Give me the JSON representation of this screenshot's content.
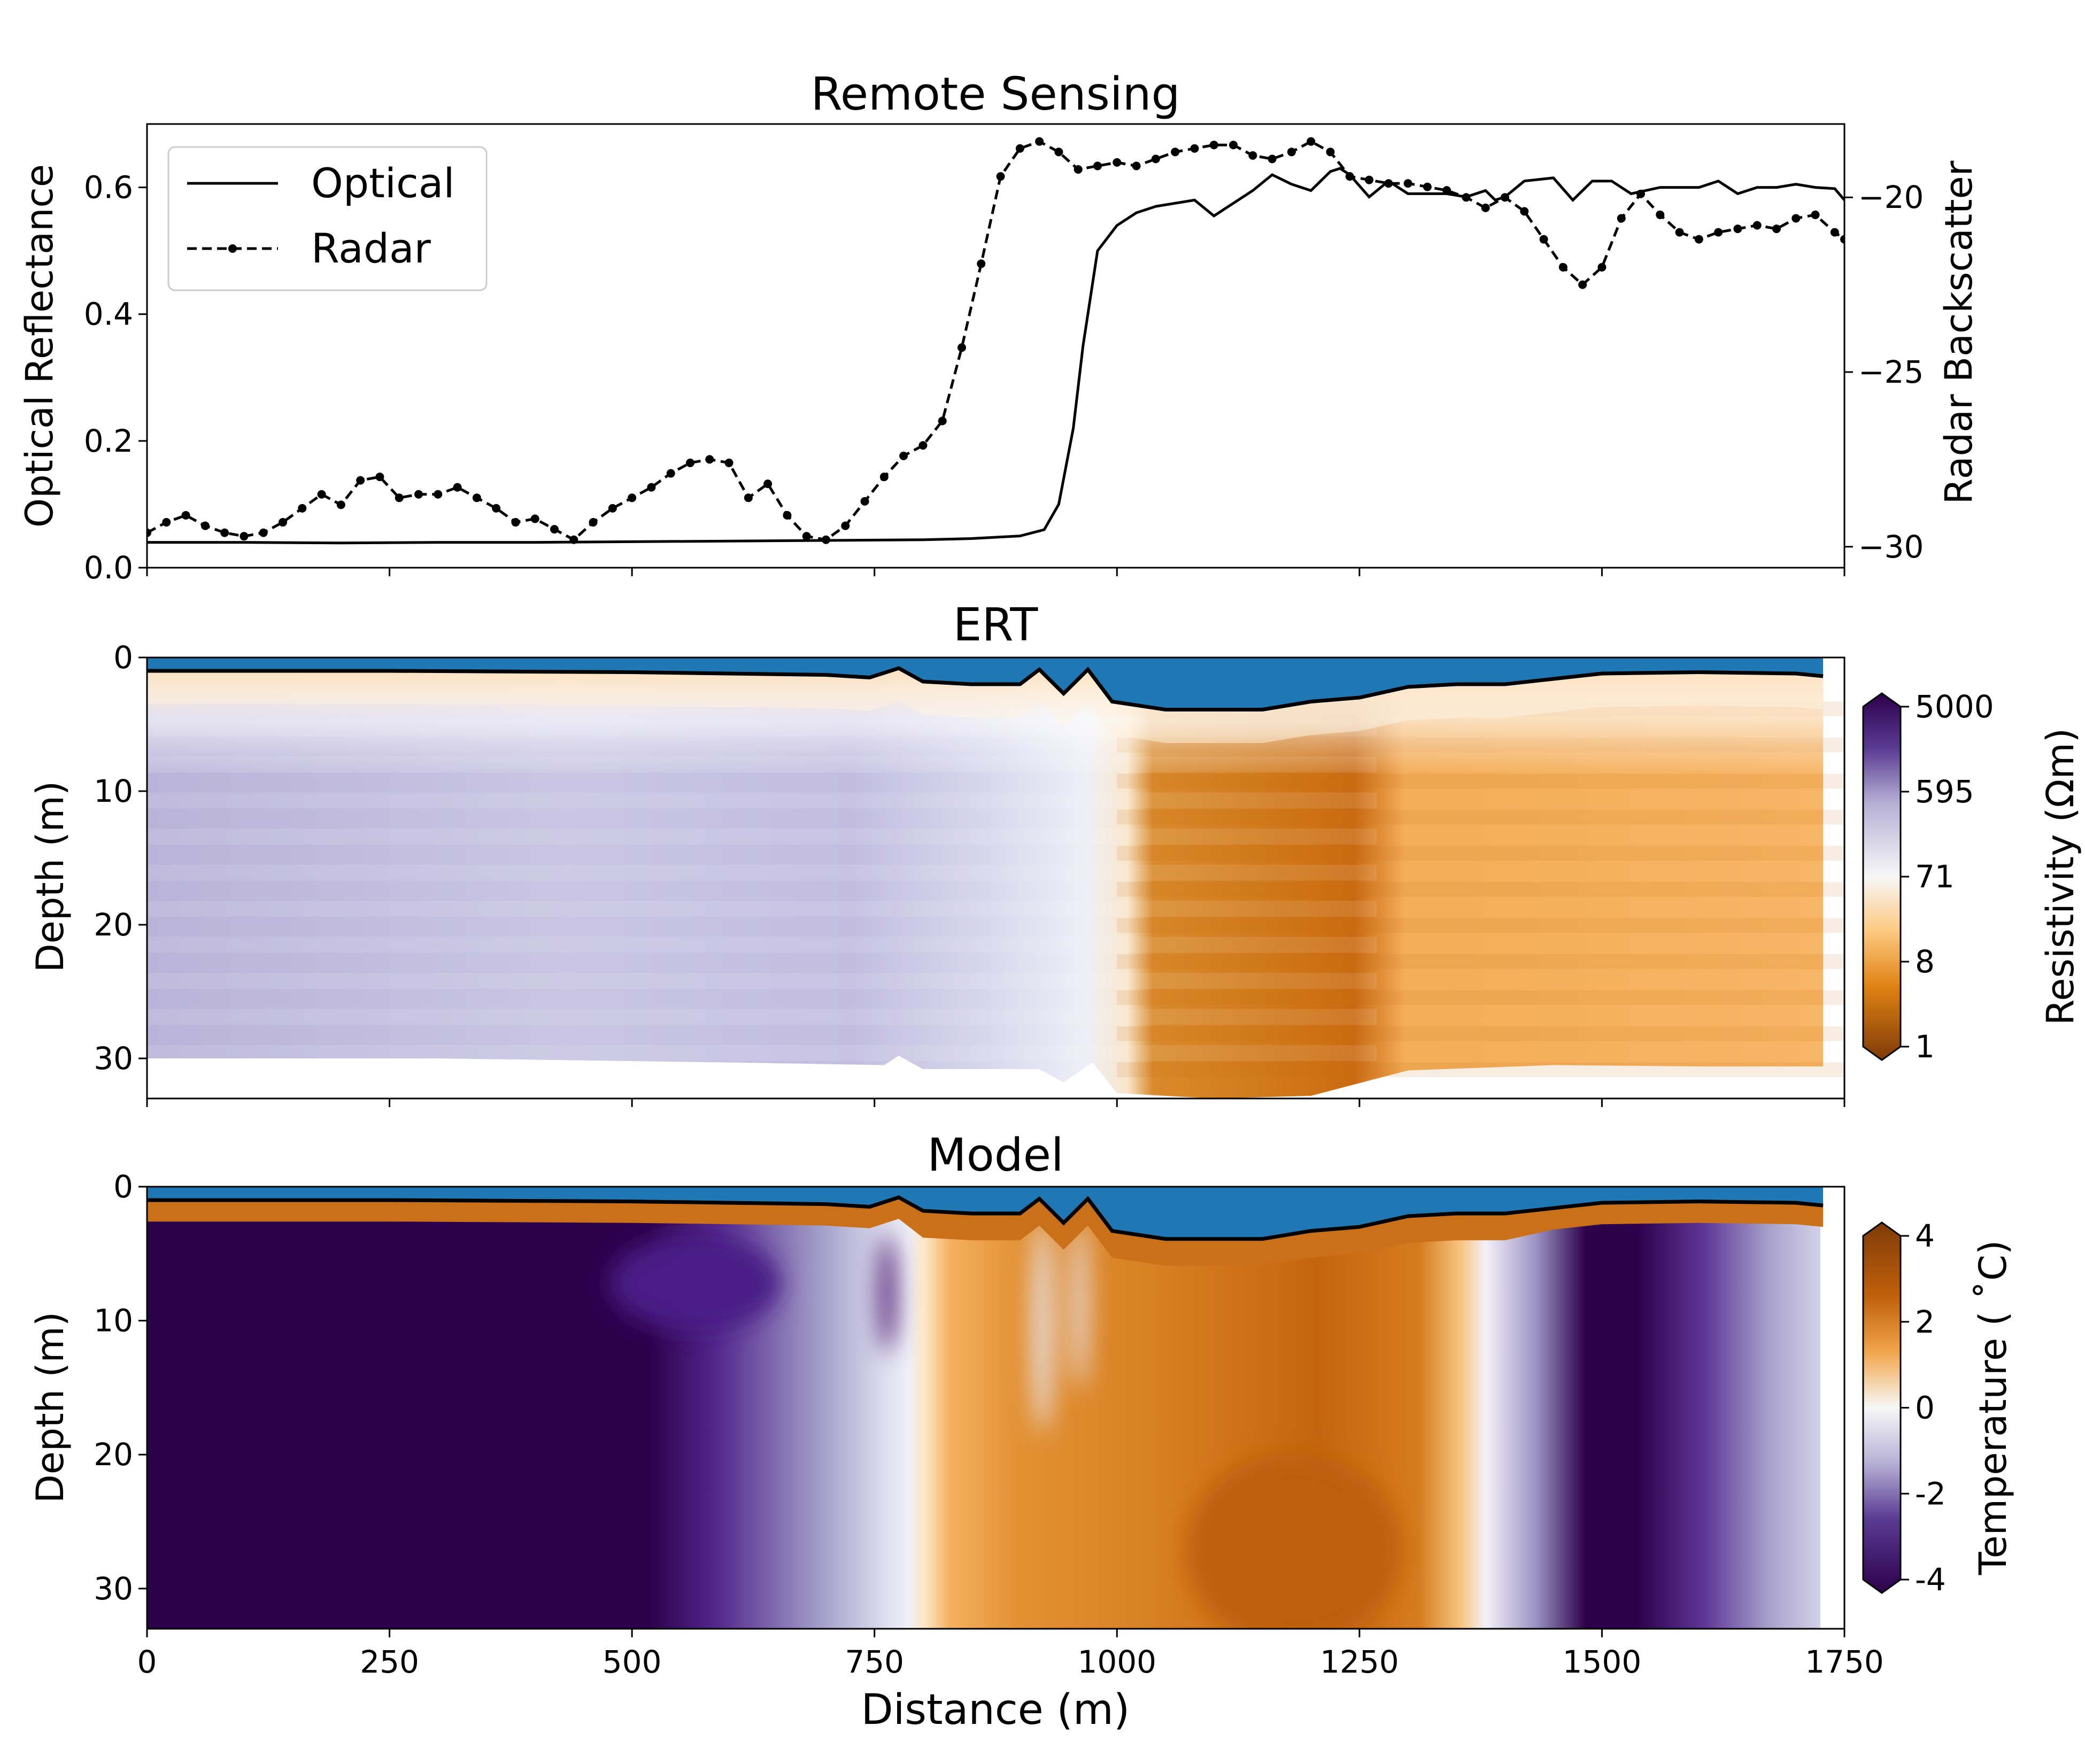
{
  "chart_data": [
    {
      "type": "line",
      "title": "Remote Sensing",
      "ylabel": "Optical Reflectance",
      "y2label": "Radar Backscatter",
      "xlim": [
        0,
        1750
      ],
      "ylim": [
        0,
        0.7
      ],
      "y2lim": [
        -30.6,
        -17.9
      ],
      "xticks": [
        "0",
        "250",
        "500",
        "750",
        "1000",
        "1250",
        "1500",
        "1750"
      ],
      "yticks": [
        "0.0",
        "0.2",
        "0.4",
        "0.6"
      ],
      "y2ticks": [
        "−20",
        "−25",
        "−30"
      ],
      "legend": "top-left",
      "series": [
        {
          "name": "Optical",
          "axis": "left",
          "style": "solid",
          "x": [
            0,
            100,
            200,
            300,
            400,
            500,
            600,
            700,
            800,
            850,
            900,
            925,
            940,
            955,
            965,
            980,
            1000,
            1020,
            1040,
            1060,
            1080,
            1100,
            1120,
            1140,
            1160,
            1180,
            1200,
            1210,
            1220,
            1230,
            1240,
            1260,
            1280,
            1290,
            1300,
            1320,
            1340,
            1360,
            1380,
            1390,
            1400,
            1420,
            1450,
            1470,
            1490,
            1510,
            1530,
            1560,
            1600,
            1620,
            1640,
            1660,
            1680,
            1700,
            1720,
            1740,
            1750
          ],
          "y": [
            0.04,
            0.04,
            0.039,
            0.04,
            0.04,
            0.041,
            0.042,
            0.043,
            0.044,
            0.046,
            0.05,
            0.06,
            0.1,
            0.22,
            0.35,
            0.5,
            0.54,
            0.56,
            0.57,
            0.575,
            0.58,
            0.555,
            0.575,
            0.595,
            0.62,
            0.605,
            0.595,
            0.61,
            0.625,
            0.63,
            0.62,
            0.585,
            0.61,
            0.6,
            0.59,
            0.59,
            0.59,
            0.585,
            0.595,
            0.58,
            0.585,
            0.61,
            0.615,
            0.58,
            0.61,
            0.61,
            0.59,
            0.6,
            0.6,
            0.61,
            0.59,
            0.6,
            0.6,
            0.605,
            0.6,
            0.598,
            0.58
          ]
        },
        {
          "name": "Radar",
          "axis": "right",
          "style": "dashed-dots",
          "x": [
            0,
            20,
            40,
            60,
            80,
            100,
            120,
            140,
            160,
            180,
            200,
            220,
            240,
            260,
            280,
            300,
            320,
            340,
            360,
            380,
            400,
            420,
            440,
            460,
            480,
            500,
            520,
            540,
            560,
            580,
            600,
            620,
            640,
            660,
            680,
            700,
            720,
            740,
            760,
            780,
            800,
            820,
            840,
            860,
            880,
            900,
            920,
            940,
            960,
            980,
            1000,
            1020,
            1040,
            1060,
            1080,
            1100,
            1120,
            1140,
            1160,
            1180,
            1200,
            1220,
            1240,
            1260,
            1280,
            1300,
            1320,
            1340,
            1360,
            1380,
            1400,
            1420,
            1440,
            1460,
            1480,
            1500,
            1520,
            1540,
            1560,
            1580,
            1600,
            1620,
            1640,
            1660,
            1680,
            1700,
            1720,
            1740,
            1750
          ],
          "y": [
            -29.6,
            -29.3,
            -29.1,
            -29.4,
            -29.6,
            -29.7,
            -29.6,
            -29.3,
            -28.9,
            -28.5,
            -28.8,
            -28.1,
            -28.0,
            -28.6,
            -28.5,
            -28.5,
            -28.3,
            -28.6,
            -28.9,
            -29.3,
            -29.2,
            -29.5,
            -29.8,
            -29.3,
            -28.9,
            -28.6,
            -28.3,
            -27.9,
            -27.6,
            -27.5,
            -27.6,
            -28.6,
            -28.2,
            -29.1,
            -29.7,
            -29.8,
            -29.4,
            -28.7,
            -28.0,
            -27.4,
            -27.1,
            -26.4,
            -24.3,
            -21.9,
            -19.4,
            -18.6,
            -18.4,
            -18.7,
            -19.2,
            -19.1,
            -19.0,
            -19.1,
            -18.9,
            -18.7,
            -18.6,
            -18.5,
            -18.5,
            -18.8,
            -18.9,
            -18.7,
            -18.4,
            -18.7,
            -19.4,
            -19.5,
            -19.6,
            -19.6,
            -19.7,
            -19.8,
            -20.0,
            -20.3,
            -20.0,
            -20.4,
            -21.2,
            -22.0,
            -22.5,
            -22.0,
            -20.6,
            -19.9,
            -20.5,
            -21.0,
            -21.2,
            -21.0,
            -20.9,
            -20.8,
            -20.9,
            -20.6,
            -20.5,
            -21.0,
            -21.2
          ]
        }
      ]
    },
    {
      "type": "heatmap",
      "title": "ERT",
      "ylabel": "Depth (m)",
      "xlim": [
        0,
        1750
      ],
      "ylim": [
        33,
        0
      ],
      "yticks": [
        "0",
        "10",
        "20",
        "30"
      ],
      "colorbar_label": "Resistivity (Ωm)",
      "colorbar_ticks": [
        "5000",
        "595",
        "71",
        "8",
        "1"
      ],
      "colors": {
        "high": "#2d004b",
        "mid": "#f7f7f7",
        "low": "#7f3b08",
        "water": "#1f77b4"
      }
    },
    {
      "type": "heatmap",
      "title": "Model",
      "xlabel": "Distance (m)",
      "ylabel": "Depth (m)",
      "xlim": [
        0,
        1750
      ],
      "ylim": [
        33,
        0
      ],
      "xticks": [
        "0",
        "250",
        "500",
        "750",
        "1000",
        "1250",
        "1500",
        "1750"
      ],
      "yticks": [
        "0",
        "10",
        "20",
        "30"
      ],
      "colorbar_label": "Temperature ( $^\\circ$C)",
      "colorbar_label_display": "Temperature ( ˚C)",
      "colorbar_ticks": [
        "4",
        "2",
        "0",
        "-2",
        "-4"
      ],
      "colors": {
        "warm": "#b35806",
        "cold": "#2d004b",
        "zero": "#f7f7f7",
        "water": "#1f77b4"
      }
    }
  ],
  "legend": {
    "optical": "Optical",
    "radar": "Radar"
  }
}
